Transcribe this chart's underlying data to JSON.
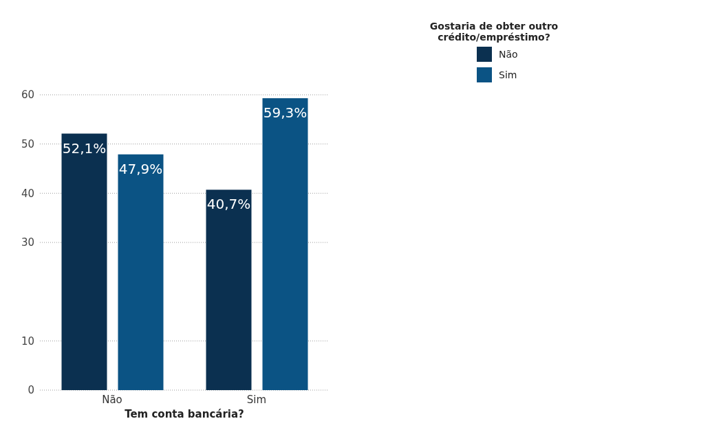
{
  "chart_data": {
    "type": "bar",
    "categories": [
      "Não",
      "Sim"
    ],
    "series": [
      {
        "name": "Não",
        "color": "#0b3050",
        "values": [
          52.1,
          40.7
        ],
        "value_labels": [
          "52,1%",
          "40,7%"
        ]
      },
      {
        "name": "Sim",
        "color": "#0b5384",
        "values": [
          47.9,
          59.3
        ],
        "value_labels": [
          "47,9%",
          "59,3%"
        ]
      }
    ],
    "xlabel": "Tem conta bancária?",
    "legend_title": "Gostaria de obter outro crédito/empréstimo?",
    "ylim": [
      0,
      60
    ],
    "yticks": [
      0,
      10,
      30,
      40,
      50,
      60
    ],
    "grid": "y",
    "legend": "top right"
  }
}
